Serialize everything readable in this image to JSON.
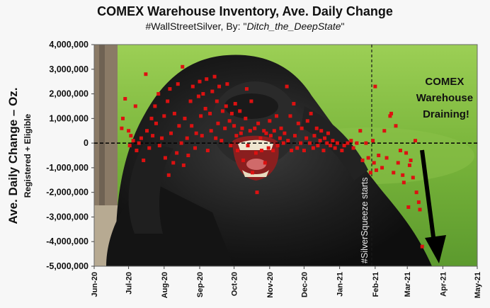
{
  "chart_data": {
    "type": "scatter",
    "title": "COMEX Warehouse Inventory, Ave. Daily Change",
    "subtitle_prefix": "#WallStreetSilver,  By: \"",
    "subtitle_author": "Ditch_the_DeepState",
    "subtitle_suffix": "\"",
    "ylabel": "Ave. Daily Change – Oz.",
    "ylabel2": "Registered + Eligible",
    "ylim": [
      -5000000,
      4000000
    ],
    "yticks": [
      4000000,
      3000000,
      2000000,
      1000000,
      0,
      -1000000,
      -2000000,
      -3000000,
      -4000000,
      -5000000
    ],
    "ytick_labels": [
      "4,000,000",
      "3,000,000",
      "2,000,000",
      "1,000,000",
      "0",
      "-1,000,000",
      "-2,000,000",
      "-3,000,000",
      "-4,000,000",
      "-5,000,000"
    ],
    "xlim": [
      "2020-06-01",
      "2021-05-01"
    ],
    "xtick_labels": [
      "Jun-20",
      "Jul-20",
      "Aug-20",
      "Sep-20",
      "Oct-20",
      "Nov-20",
      "Dec-20",
      "Jan-21",
      "Feb-21",
      "Mar-21",
      "Apr-21",
      "May-21"
    ],
    "xtick_dates": [
      "2020-06-01",
      "2020-07-01",
      "2020-08-01",
      "2020-09-01",
      "2020-10-01",
      "2020-11-01",
      "2020-12-01",
      "2021-01-01",
      "2021-02-01",
      "2021-03-01",
      "2021-04-01",
      "2021-05-01"
    ],
    "vline_date": "2021-01-29",
    "vline_label": "#SilverSqueeze starts",
    "annotation": "COMEX Warehouse Draining!",
    "marker_color": "#dd1111",
    "points": [
      [
        "2020-06-25",
        600000
      ],
      [
        "2020-06-26",
        1000000
      ],
      [
        "2020-06-28",
        1800000
      ],
      [
        "2020-07-01",
        500000
      ],
      [
        "2020-07-02",
        -100000
      ],
      [
        "2020-07-03",
        300000
      ],
      [
        "2020-07-05",
        100000
      ],
      [
        "2020-07-07",
        1500000
      ],
      [
        "2020-07-08",
        -300000
      ],
      [
        "2020-07-10",
        0
      ],
      [
        "2020-07-12",
        200000
      ],
      [
        "2020-07-14",
        -700000
      ],
      [
        "2020-07-16",
        2800000
      ],
      [
        "2020-07-17",
        500000
      ],
      [
        "2020-07-19",
        -200000
      ],
      [
        "2020-07-21",
        1000000
      ],
      [
        "2020-07-22",
        300000
      ],
      [
        "2020-07-24",
        1500000
      ],
      [
        "2020-07-25",
        800000
      ],
      [
        "2020-07-27",
        2000000
      ],
      [
        "2020-07-28",
        -100000
      ],
      [
        "2020-07-30",
        200000
      ],
      [
        "2020-08-01",
        1100000
      ],
      [
        "2020-08-02",
        -600000
      ],
      [
        "2020-08-04",
        1700000
      ],
      [
        "2020-08-05",
        -1300000
      ],
      [
        "2020-08-06",
        2200000
      ],
      [
        "2020-08-07",
        400000
      ],
      [
        "2020-08-09",
        -800000
      ],
      [
        "2020-08-10",
        1200000
      ],
      [
        "2020-08-12",
        -400000
      ],
      [
        "2020-08-13",
        2400000
      ],
      [
        "2020-08-14",
        700000
      ],
      [
        "2020-08-16",
        0
      ],
      [
        "2020-08-17",
        3100000
      ],
      [
        "2020-08-18",
        -900000
      ],
      [
        "2020-08-19",
        1000000
      ],
      [
        "2020-08-21",
        200000
      ],
      [
        "2020-08-22",
        -500000
      ],
      [
        "2020-08-24",
        1700000
      ],
      [
        "2020-08-25",
        700000
      ],
      [
        "2020-08-26",
        2300000
      ],
      [
        "2020-08-28",
        -200000
      ],
      [
        "2020-08-29",
        400000
      ],
      [
        "2020-08-31",
        1900000
      ],
      [
        "2020-09-01",
        2500000
      ],
      [
        "2020-09-02",
        1100000
      ],
      [
        "2020-09-03",
        300000
      ],
      [
        "2020-09-04",
        2000000
      ],
      [
        "2020-09-06",
        1400000
      ],
      [
        "2020-09-07",
        2600000
      ],
      [
        "2020-09-08",
        -300000
      ],
      [
        "2020-09-10",
        1200000
      ],
      [
        "2020-09-11",
        500000
      ],
      [
        "2020-09-12",
        2100000
      ],
      [
        "2020-09-14",
        2700000
      ],
      [
        "2020-09-15",
        200000
      ],
      [
        "2020-09-16",
        1700000
      ],
      [
        "2020-09-17",
        800000
      ],
      [
        "2020-09-18",
        2300000
      ],
      [
        "2020-09-20",
        100000
      ],
      [
        "2020-09-21",
        1300000
      ],
      [
        "2020-09-23",
        600000
      ],
      [
        "2020-09-24",
        1500000
      ],
      [
        "2020-09-25",
        2400000
      ],
      [
        "2020-09-27",
        900000
      ],
      [
        "2020-09-28",
        -100000
      ],
      [
        "2020-09-29",
        1200000
      ],
      [
        "2020-10-01",
        700000
      ],
      [
        "2020-10-02",
        1600000
      ],
      [
        "2020-10-03",
        300000
      ],
      [
        "2020-10-04",
        -300000
      ],
      [
        "2020-10-06",
        1300000
      ],
      [
        "2020-10-07",
        400000
      ],
      [
        "2020-10-08",
        600000
      ],
      [
        "2020-10-09",
        -700000
      ],
      [
        "2020-10-11",
        1000000
      ],
      [
        "2020-10-12",
        2200000
      ],
      [
        "2020-10-13",
        -100000
      ],
      [
        "2020-10-15",
        500000
      ],
      [
        "2020-10-16",
        1700000
      ],
      [
        "2020-10-17",
        -1200000
      ],
      [
        "2020-10-19",
        600000
      ],
      [
        "2020-10-20",
        -400000
      ],
      [
        "2020-10-21",
        -2000000
      ],
      [
        "2020-10-22",
        800000
      ],
      [
        "2020-10-24",
        200000
      ],
      [
        "2020-10-25",
        -300000
      ],
      [
        "2020-10-27",
        500000
      ],
      [
        "2020-10-28",
        -800000
      ],
      [
        "2020-10-29",
        400000
      ],
      [
        "2020-10-31",
        -200000
      ],
      [
        "2020-11-01",
        900000
      ],
      [
        "2020-11-02",
        300000
      ],
      [
        "2020-11-04",
        -300000
      ],
      [
        "2020-11-05",
        500000
      ],
      [
        "2020-11-07",
        1100000
      ],
      [
        "2020-11-08",
        -100000
      ],
      [
        "2020-11-10",
        200000
      ],
      [
        "2020-11-11",
        600000
      ],
      [
        "2020-11-13",
        0
      ],
      [
        "2020-11-14",
        400000
      ],
      [
        "2020-11-16",
        2300000
      ],
      [
        "2020-11-17",
        100000
      ],
      [
        "2020-11-19",
        1100000
      ],
      [
        "2020-11-20",
        -300000
      ],
      [
        "2020-11-22",
        1600000
      ],
      [
        "2020-11-23",
        300000
      ],
      [
        "2020-11-25",
        -200000
      ],
      [
        "2020-11-26",
        800000
      ],
      [
        "2020-11-28",
        0
      ],
      [
        "2020-11-29",
        600000
      ],
      [
        "2020-12-01",
        -300000
      ],
      [
        "2020-12-03",
        200000
      ],
      [
        "2020-12-04",
        900000
      ],
      [
        "2020-12-06",
        0
      ],
      [
        "2020-12-07",
        1200000
      ],
      [
        "2020-12-09",
        -200000
      ],
      [
        "2020-12-10",
        300000
      ],
      [
        "2020-12-12",
        600000
      ],
      [
        "2020-12-13",
        -100000
      ],
      [
        "2020-12-15",
        100000
      ],
      [
        "2020-12-16",
        500000
      ],
      [
        "2020-12-18",
        -300000
      ],
      [
        "2020-12-19",
        200000
      ],
      [
        "2020-12-21",
        0
      ],
      [
        "2020-12-22",
        400000
      ],
      [
        "2020-12-24",
        -100000
      ],
      [
        "2020-12-26",
        100000
      ],
      [
        "2020-12-28",
        -200000
      ],
      [
        "2020-12-30",
        0
      ],
      [
        "2021-01-03",
        -300000
      ],
      [
        "2021-01-05",
        -100000
      ],
      [
        "2021-01-08",
        0
      ],
      [
        "2021-01-11",
        100000
      ],
      [
        "2021-01-13",
        -200000
      ],
      [
        "2021-01-16",
        0
      ],
      [
        "2021-01-19",
        500000
      ],
      [
        "2021-01-21",
        -700000
      ],
      [
        "2021-01-24",
        0
      ],
      [
        "2021-01-26",
        -600000
      ],
      [
        "2021-01-28",
        -1200000
      ],
      [
        "2021-01-30",
        100000
      ],
      [
        "2021-01-31",
        -800000
      ],
      [
        "2021-02-01",
        2300000
      ],
      [
        "2021-02-02",
        -1100000
      ],
      [
        "2021-02-04",
        -500000
      ],
      [
        "2021-02-07",
        -1000000
      ],
      [
        "2021-02-09",
        500000
      ],
      [
        "2021-02-11",
        -600000
      ],
      [
        "2021-02-14",
        1100000
      ],
      [
        "2021-02-15",
        1200000
      ],
      [
        "2021-02-17",
        -1200000
      ],
      [
        "2021-02-19",
        700000
      ],
      [
        "2021-02-21",
        -800000
      ],
      [
        "2021-02-23",
        -300000
      ],
      [
        "2021-02-25",
        -1300000
      ],
      [
        "2021-02-26",
        -1600000
      ],
      [
        "2021-02-28",
        -400000
      ],
      [
        "2021-03-02",
        -2600000
      ],
      [
        "2021-03-03",
        -900000
      ],
      [
        "2021-03-04",
        -700000
      ],
      [
        "2021-03-06",
        -1400000
      ],
      [
        "2021-03-08",
        100000
      ],
      [
        "2021-03-09",
        -2000000
      ],
      [
        "2021-03-11",
        -2400000
      ],
      [
        "2021-03-12",
        -2700000
      ],
      [
        "2021-03-14",
        -4200000
      ]
    ]
  }
}
